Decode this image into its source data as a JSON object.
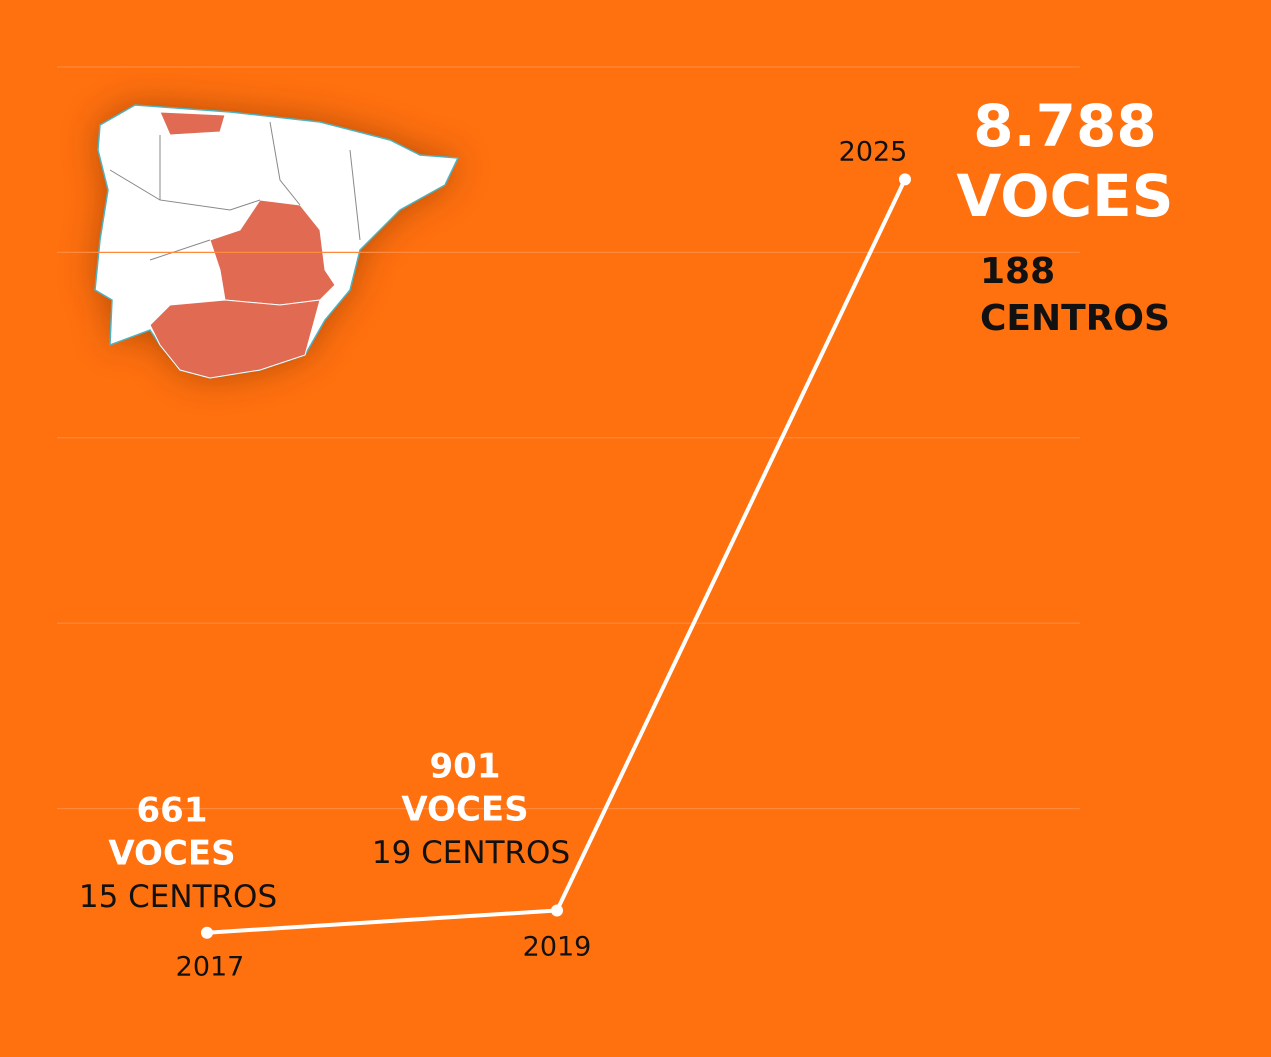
{
  "chart_data": {
    "type": "line",
    "categories": [
      "2017",
      "2019",
      "2025"
    ],
    "values": [
      661,
      901,
      8788
    ],
    "value_labels": [
      "661",
      "901",
      "8.788"
    ],
    "unit": "VOCES",
    "centros": [
      15,
      19,
      188
    ],
    "centros_unit": "CENTROS",
    "color": "#ffffff",
    "ylim": [
      0,
      10000
    ],
    "yticks": [
      2000,
      4000,
      6000,
      8000,
      10000
    ],
    "grid": true
  }
}
